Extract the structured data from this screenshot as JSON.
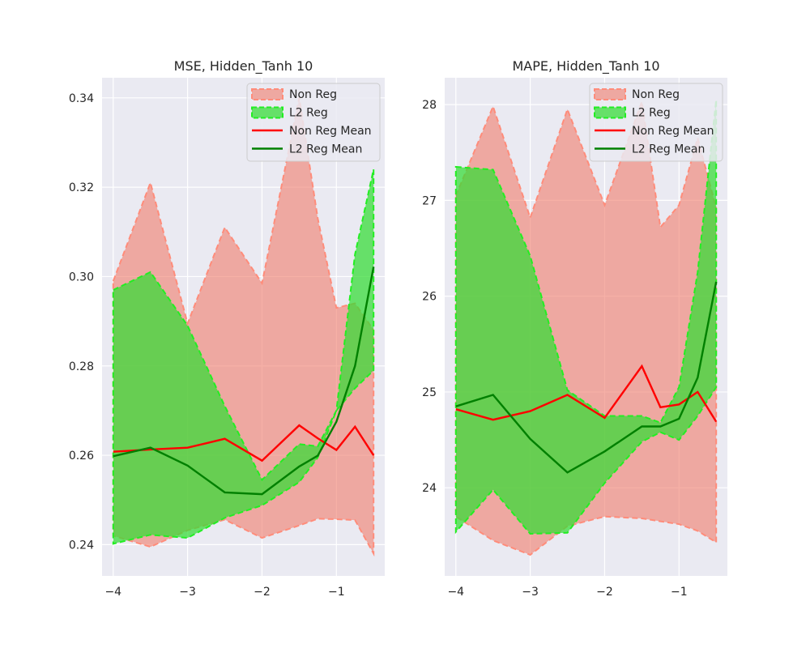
{
  "colors": {
    "non_reg_fill": "#f08070",
    "non_reg_edge": "#ff8c7a",
    "l2_fill": "#33dd33",
    "l2_edge": "#22ee22",
    "non_reg_mean": "#ff0000",
    "l2_mean": "#008000"
  },
  "chart_data": [
    {
      "type": "area",
      "title": "MSE, Hidden_Tanh 10",
      "xlim": [
        -4.15,
        -0.35
      ],
      "ylim": [
        0.233,
        0.3445
      ],
      "xticks": [
        -4,
        -3,
        -2,
        -1
      ],
      "xtick_labels": [
        "−4",
        "−3",
        "−2",
        "−1"
      ],
      "yticks": [
        0.24,
        0.26,
        0.28,
        0.3,
        0.32,
        0.34
      ],
      "ytick_labels": [
        "0.24",
        "0.26",
        "0.28",
        "0.30",
        "0.32",
        "0.34"
      ],
      "grid": true,
      "legend_position": "top-right",
      "x": [
        -4,
        -3.5,
        -3,
        -2.5,
        -2,
        -1.5,
        -1.25,
        -1,
        -0.75,
        -0.5
      ],
      "series": [
        {
          "name": "Non Reg",
          "kind": "band",
          "lower": [
            0.242,
            0.2395,
            0.2432,
            0.2456,
            0.2415,
            0.2443,
            0.2458,
            0.2457,
            0.2455,
            0.238
          ],
          "upper": [
            0.299,
            0.321,
            0.2895,
            0.311,
            0.2985,
            0.34,
            0.313,
            0.293,
            0.294,
            0.288
          ]
        },
        {
          "name": "L2 Reg",
          "kind": "band",
          "lower": [
            0.2402,
            0.2422,
            0.2415,
            0.246,
            0.2488,
            0.254,
            0.2595,
            0.27,
            0.275,
            0.279
          ],
          "upper": [
            0.297,
            0.301,
            0.289,
            0.271,
            0.2545,
            0.2625,
            0.262,
            0.27,
            0.305,
            0.324
          ]
        },
        {
          "name": "Non Reg Mean",
          "kind": "line",
          "values": [
            0.2608,
            0.2613,
            0.2617,
            0.2637,
            0.2588,
            0.2667,
            0.2638,
            0.2612,
            0.2664,
            0.26
          ]
        },
        {
          "name": "L2 Reg Mean",
          "kind": "line",
          "values": [
            0.2598,
            0.2617,
            0.2577,
            0.2517,
            0.2513,
            0.2575,
            0.2599,
            0.2675,
            0.28,
            0.3022
          ]
        }
      ]
    },
    {
      "type": "area",
      "title": "MAPE, Hidden_Tanh 10",
      "xlim": [
        -4.15,
        -0.35
      ],
      "ylim": [
        23.08,
        28.28
      ],
      "xticks": [
        -4,
        -3,
        -2,
        -1
      ],
      "xtick_labels": [
        "−4",
        "−3",
        "−2",
        "−1"
      ],
      "yticks": [
        24,
        25,
        26,
        27,
        28
      ],
      "ytick_labels": [
        "24",
        "25",
        "26",
        "27",
        "28"
      ],
      "grid": true,
      "legend_position": "top-right",
      "x": [
        -4,
        -3.5,
        -3,
        -2.5,
        -2,
        -1.5,
        -1.25,
        -1,
        -0.75,
        -0.5
      ],
      "series": [
        {
          "name": "Non Reg",
          "kind": "band",
          "lower": [
            23.7,
            23.45,
            23.3,
            23.6,
            23.7,
            23.68,
            23.65,
            23.62,
            23.55,
            23.43
          ],
          "upper": [
            27.05,
            27.98,
            26.82,
            27.95,
            26.95,
            28.03,
            26.72,
            26.95,
            27.65,
            26.92
          ]
        },
        {
          "name": "L2 Reg",
          "kind": "band",
          "lower": [
            23.54,
            23.98,
            23.52,
            23.53,
            24.05,
            24.48,
            24.58,
            24.5,
            24.75,
            25.05
          ],
          "upper": [
            27.35,
            27.32,
            26.42,
            25.02,
            24.75,
            24.75,
            24.68,
            25.05,
            26.25,
            28.05
          ]
        },
        {
          "name": "Non Reg Mean",
          "kind": "line",
          "values": [
            24.82,
            24.71,
            24.8,
            24.97,
            24.73,
            25.27,
            24.84,
            24.87,
            25.0,
            24.69
          ]
        },
        {
          "name": "L2 Reg Mean",
          "kind": "line",
          "values": [
            24.85,
            24.97,
            24.51,
            24.16,
            24.38,
            24.64,
            24.64,
            24.72,
            25.15,
            26.15
          ]
        }
      ]
    }
  ]
}
